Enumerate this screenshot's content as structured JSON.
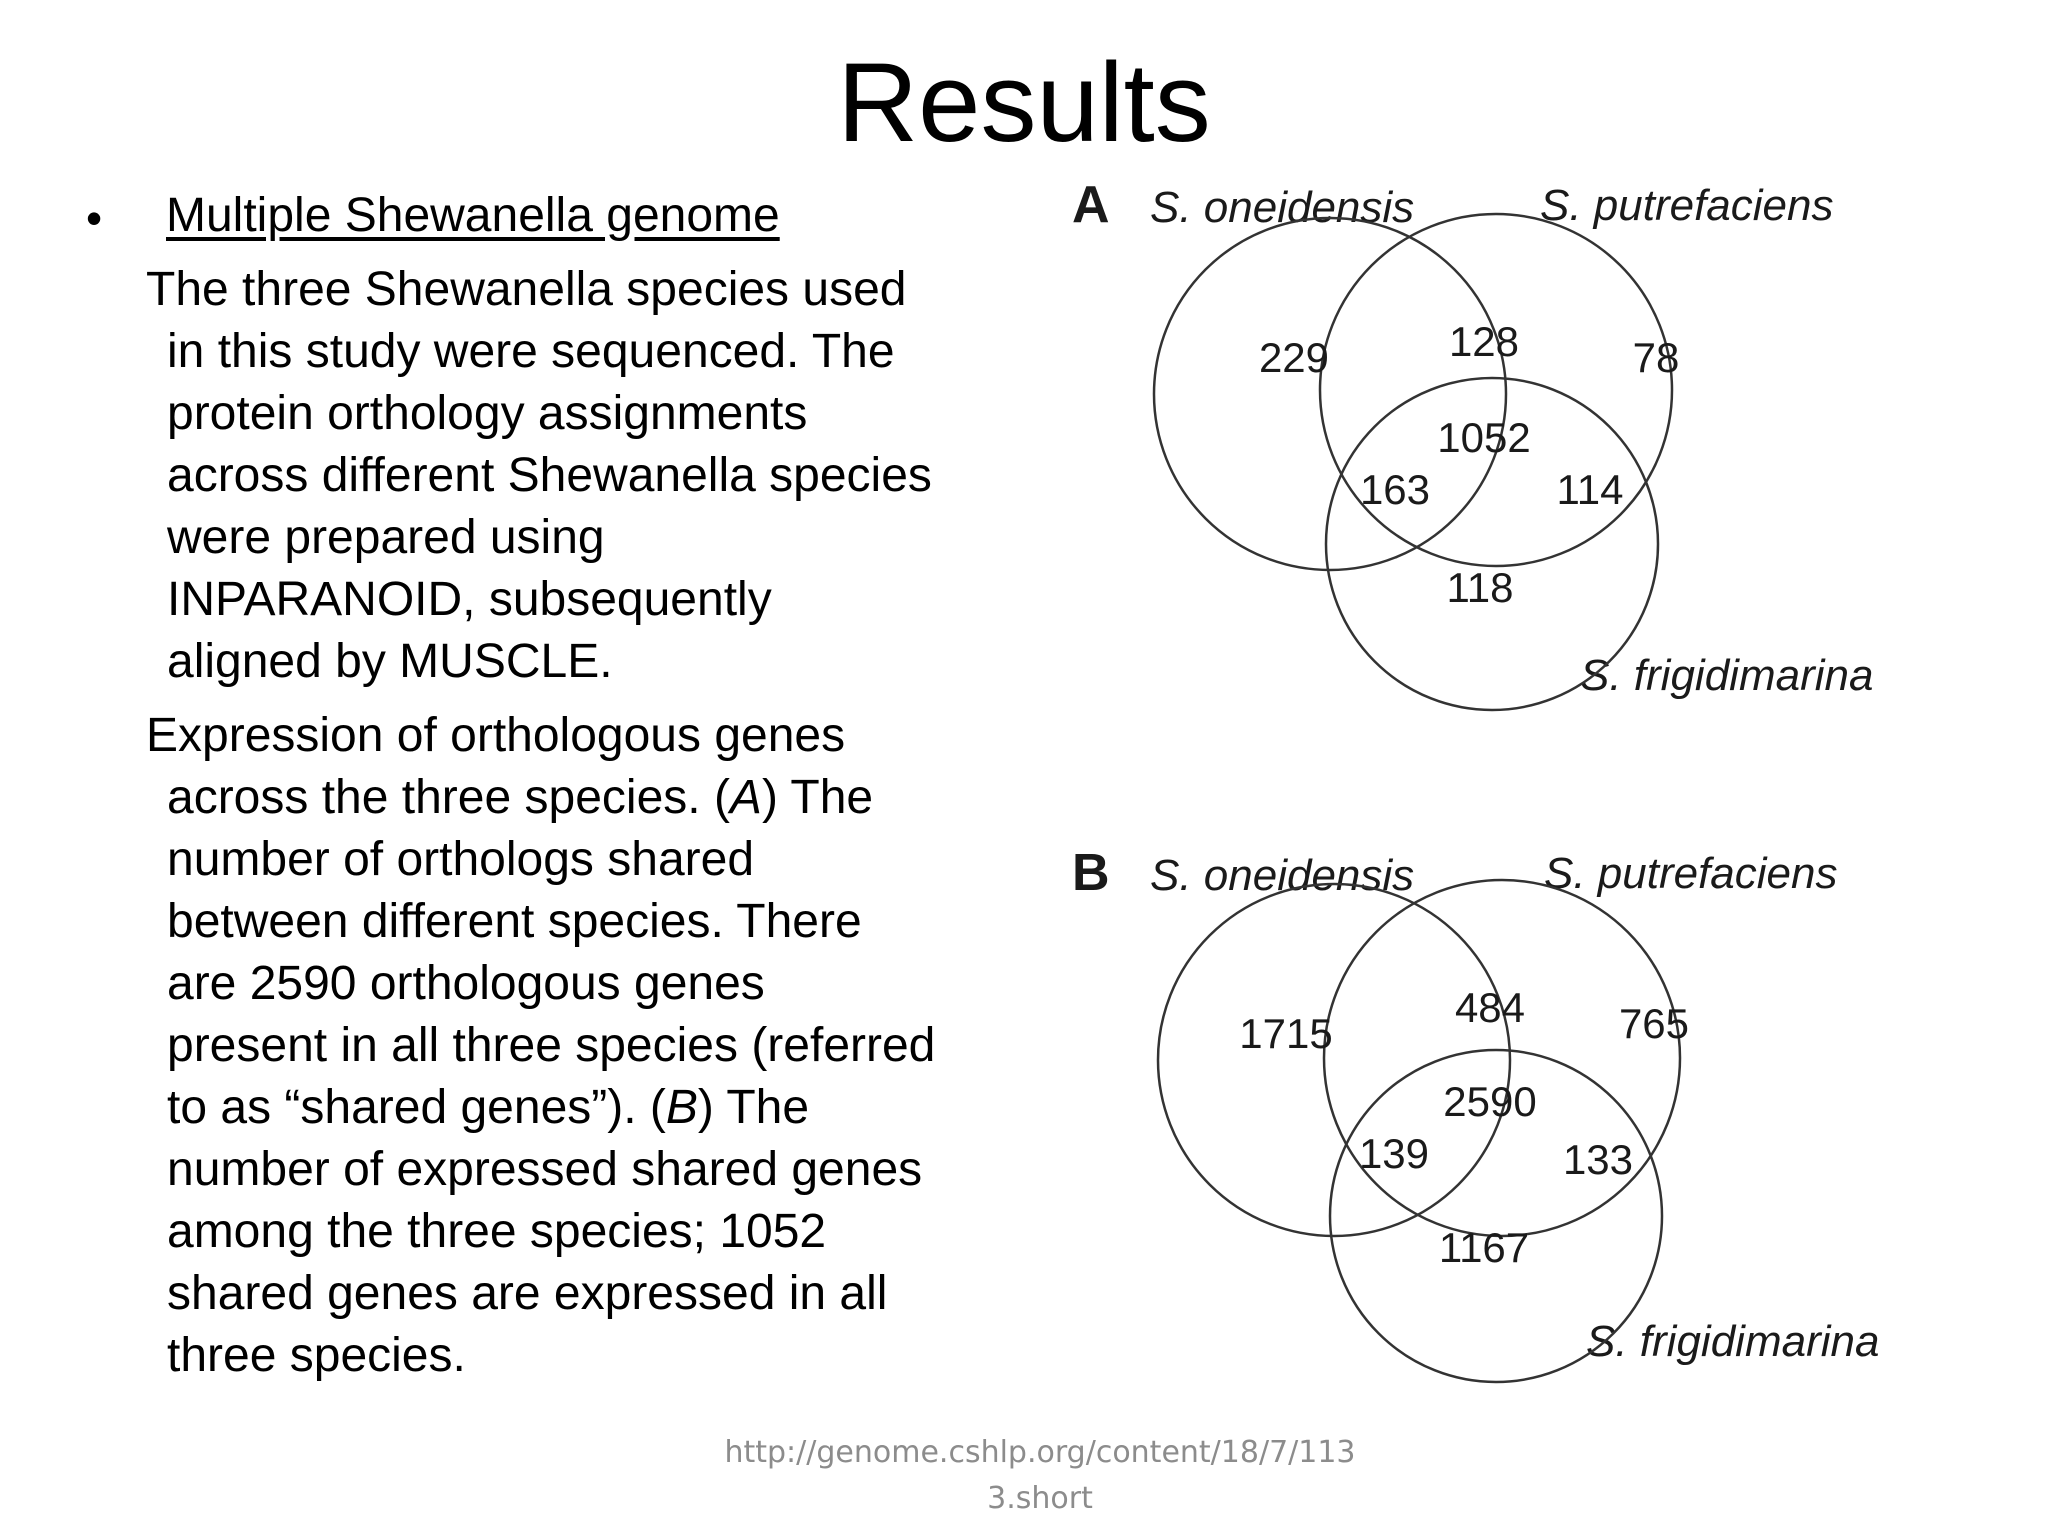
{
  "slide": {
    "title": "Results",
    "bullet": {
      "marker": "•",
      "heading": "Multiple Shewanella genome"
    },
    "paragraph_1": [
      "The three Shewanella species used",
      "in this study were sequenced. The",
      "protein orthology assignments",
      "across different Shewanella species",
      "were prepared using",
      "INPARANOID, subsequently",
      "aligned by MUSCLE."
    ],
    "paragraph_2": {
      "l1": "Expression of orthologous genes",
      "l2_pre": "across the three species. (",
      "l2_em": "A",
      "l2_post": ") The",
      "l3": "number of orthologs shared",
      "l4": "between different species. There",
      "l5": "are 2590 orthologous genes",
      "l6": "present in all three species (referred",
      "l7_pre": "to as “shared genes”). (",
      "l7_em": "B",
      "l7_post": ") The",
      "l8": "number of expressed shared genes",
      "l9": "among the three species; 1052",
      "l10": "shared genes are expressed in all",
      "l11": "three species."
    },
    "source": {
      "line1": "http://genome.cshlp.org/content/18/7/113",
      "line2": "3.short"
    }
  },
  "figure": {
    "panel_a": {
      "letter": "A",
      "species_1": "S. oneidensis",
      "species_2": "S. putrefaciens",
      "species_3": "S. frigidimarina",
      "only_1": "229",
      "shared_12": "128",
      "only_2": "78",
      "shared_123": "1052",
      "shared_13": "163",
      "shared_23": "114",
      "only_3": "118"
    },
    "panel_b": {
      "letter": "B",
      "species_1": "S. oneidensis",
      "species_2": "S. putrefaciens",
      "species_3": "S. frigidimarina",
      "only_1": "1715",
      "shared_12": "484",
      "only_2": "765",
      "shared_123": "2590",
      "shared_13": "139",
      "shared_23": "133",
      "only_3": "1167"
    }
  }
}
